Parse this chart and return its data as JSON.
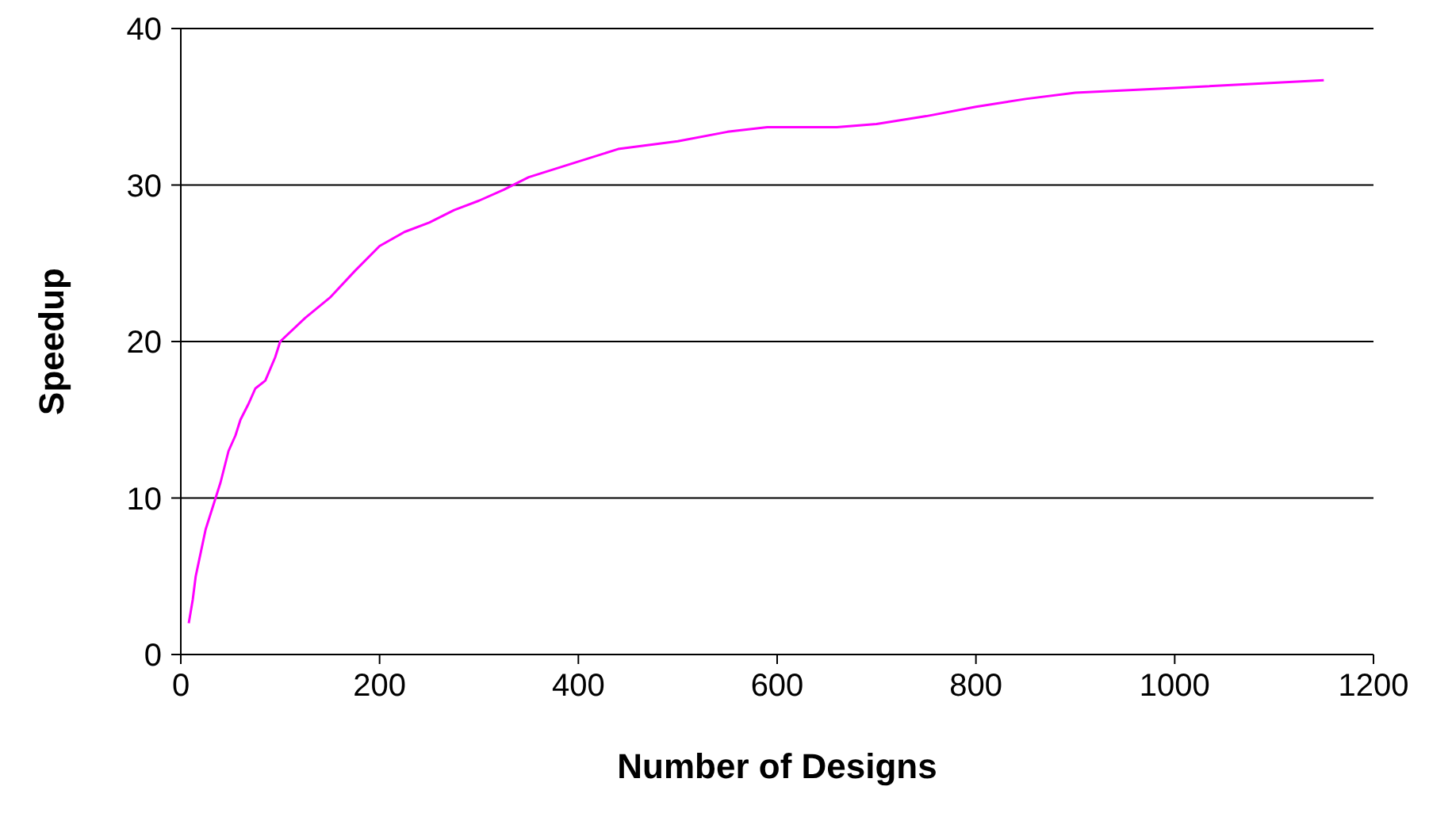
{
  "chart_data": {
    "type": "line",
    "xlabel": "Number of Designs",
    "ylabel": "Speedup",
    "x": [
      8,
      12,
      15,
      20,
      25,
      30,
      35,
      40,
      48,
      55,
      60,
      68,
      75,
      85,
      95,
      100,
      125,
      150,
      175,
      200,
      225,
      250,
      275,
      300,
      325,
      350,
      400,
      440,
      500,
      550,
      590,
      660,
      700,
      750,
      800,
      850,
      900,
      1000,
      1150
    ],
    "series": [
      {
        "color": "#ff00ff",
        "values": [
          2,
          3.5,
          5,
          6.5,
          8,
          9,
          10,
          11,
          13,
          14,
          15,
          16,
          17,
          17.5,
          19,
          20,
          21.5,
          22.8,
          24.5,
          26.1,
          27,
          27.6,
          28.4,
          29,
          29.7,
          30.5,
          31.5,
          32.3,
          32.8,
          33.4,
          33.7,
          33.7,
          33.9,
          34.4,
          35,
          35.5,
          35.9,
          36.2,
          36.7
        ]
      }
    ],
    "xlim": [
      0,
      1200
    ],
    "xticks": [
      0,
      200,
      400,
      600,
      800,
      1000,
      1200
    ],
    "ylim": [
      0,
      40
    ],
    "yticks": [
      0,
      10,
      20,
      30,
      40
    ],
    "grid": "y",
    "legend": false,
    "marker": "none",
    "line_style": "solid"
  }
}
